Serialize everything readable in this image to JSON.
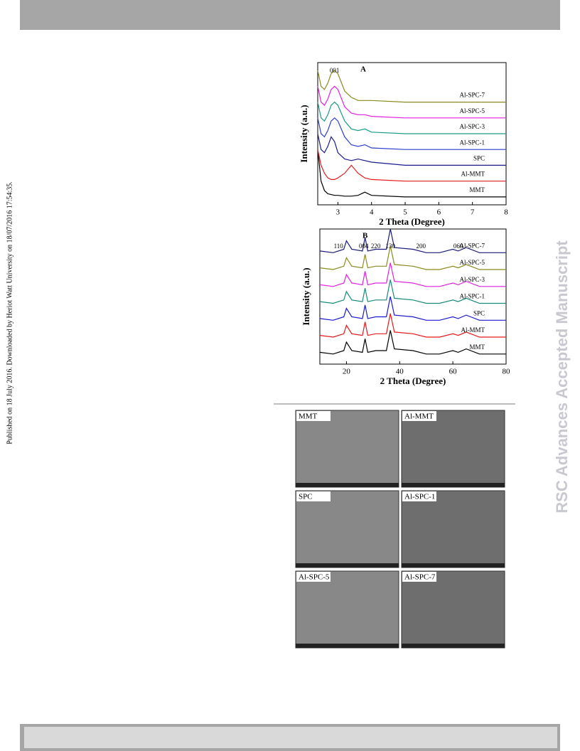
{
  "side_note": "Published on 18 July 2016. Downloaded by Heriot Watt University on 18/07/2016 17:54:35.",
  "watermark": "RSC Advances Accepted Manuscript",
  "chart_data": [
    {
      "type": "line",
      "panel": "A",
      "xlabel": "2 Theta (Degree)",
      "ylabel": "Intensity (a.u.)",
      "annotations": [
        {
          "text": "001",
          "x": 2.9
        }
      ],
      "x": [
        2.4,
        2.5,
        2.6,
        2.7,
        2.8,
        2.9,
        3.0,
        3.2,
        3.4,
        3.6,
        3.8,
        4,
        5,
        6,
        7,
        8
      ],
      "xlim": [
        2.4,
        8
      ],
      "xticks": [
        3,
        4,
        5,
        6,
        7,
        8
      ],
      "ylim": [
        -0.5,
        8.5
      ],
      "series": [
        {
          "name": "MMT",
          "color": "#000000",
          "values": [
            3,
            1,
            0.4,
            0.2,
            0.15,
            0.1,
            0.1,
            0.05,
            0.05,
            0.1,
            0.3,
            0.1,
            0,
            0,
            0,
            0
          ]
        },
        {
          "name": "Al-MMT",
          "color": "#e41a1c",
          "values": [
            3,
            2,
            1.5,
            1.2,
            1.1,
            1.1,
            1.2,
            1.5,
            2.0,
            1.5,
            1.2,
            1.1,
            1.0,
            1.0,
            1.0,
            1.0
          ]
        },
        {
          "name": "SPC",
          "color": "#1a1a8c",
          "values": [
            4,
            3,
            2.8,
            3.2,
            3.8,
            3.5,
            2.8,
            2.4,
            2.3,
            2.4,
            2.3,
            2.2,
            2,
            2,
            2,
            2
          ]
        },
        {
          "name": "Al-SPC-1",
          "color": "#2b3fc9",
          "values": [
            5,
            4,
            3.8,
            4.2,
            4.8,
            5.0,
            4.8,
            3.8,
            3.3,
            3.2,
            3.3,
            3.1,
            3,
            3,
            3,
            3
          ]
        },
        {
          "name": "Al-SPC-3",
          "color": "#1a9a8a",
          "values": [
            6,
            5,
            4.8,
            5.2,
            5.8,
            6.0,
            5.8,
            4.8,
            4.3,
            4.2,
            4.3,
            4.1,
            4,
            4,
            4,
            4
          ]
        },
        {
          "name": "Al-SPC-5",
          "color": "#e020e0",
          "values": [
            7,
            6,
            5.8,
            6.2,
            6.8,
            7.0,
            6.8,
            5.7,
            5.3,
            5.2,
            5.2,
            5.1,
            5,
            5,
            5,
            5
          ]
        },
        {
          "name": "Al-SPC-7",
          "color": "#8a8a20",
          "values": [
            8,
            7,
            6.8,
            7.2,
            7.8,
            8.0,
            7.8,
            6.7,
            6.3,
            6.1,
            6.1,
            6.1,
            6,
            6,
            6,
            6
          ]
        }
      ]
    },
    {
      "type": "line",
      "panel": "B",
      "xlabel": "2 Theta (Degree)",
      "ylabel": "Intensity (a.u.)",
      "annotations": [
        {
          "text": "110",
          "x": 17
        },
        {
          "text": "004",
          "x": 26.5
        },
        {
          "text": "220",
          "x": 31
        },
        {
          "text": "130",
          "x": 36.5
        },
        {
          "text": "200",
          "x": 48
        },
        {
          "text": "060",
          "x": 62
        }
      ],
      "x": [
        10,
        15,
        19,
        20,
        22,
        26,
        27,
        28,
        31,
        35,
        36.5,
        38,
        45,
        50,
        55,
        60,
        62,
        65,
        70,
        75,
        80
      ],
      "xlim": [
        10,
        80
      ],
      "xticks": [
        20,
        40,
        60,
        80
      ],
      "ylim": [
        -0.5,
        7.5
      ],
      "series": [
        {
          "name": "MMT",
          "color": "#000000",
          "values": [
            0.2,
            0.1,
            0.3,
            0.8,
            0.3,
            0.2,
            1.0,
            0.2,
            0.3,
            0.3,
            1.5,
            0.4,
            0.3,
            0.1,
            0.1,
            0.3,
            0.2,
            0.4,
            0.1,
            0.1,
            0.1
          ]
        },
        {
          "name": "Al-MMT",
          "color": "#e41a1c",
          "values": [
            1.2,
            1.1,
            1.3,
            1.8,
            1.3,
            1.2,
            2.0,
            1.2,
            1.3,
            1.3,
            2.5,
            1.4,
            1.3,
            1.1,
            1.1,
            1.3,
            1.2,
            1.4,
            1.1,
            1.1,
            1.1
          ]
        },
        {
          "name": "SPC",
          "color": "#1a1acc",
          "values": [
            2.2,
            2.1,
            2.3,
            2.8,
            2.3,
            2.2,
            3.0,
            2.2,
            2.3,
            2.3,
            3.5,
            2.4,
            2.3,
            2.1,
            2.1,
            2.3,
            2.2,
            2.4,
            2.1,
            2.1,
            2.1
          ]
        },
        {
          "name": "Al-SPC-1",
          "color": "#1a8a7a",
          "values": [
            3.2,
            3.1,
            3.3,
            3.8,
            3.3,
            3.2,
            4.0,
            3.2,
            3.3,
            3.3,
            4.5,
            3.4,
            3.3,
            3.1,
            3.1,
            3.3,
            3.2,
            3.4,
            3.1,
            3.1,
            3.1
          ]
        },
        {
          "name": "Al-SPC-3",
          "color": "#e020e0",
          "values": [
            4.2,
            4.1,
            4.3,
            4.8,
            4.3,
            4.2,
            5.0,
            4.2,
            4.3,
            4.3,
            5.5,
            4.4,
            4.3,
            4.1,
            4.1,
            4.3,
            4.2,
            4.4,
            4.1,
            4.1,
            4.1
          ]
        },
        {
          "name": "Al-SPC-5",
          "color": "#8a8a20",
          "values": [
            5.2,
            5.1,
            5.3,
            5.8,
            5.3,
            5.2,
            6.0,
            5.2,
            5.3,
            5.3,
            6.5,
            5.4,
            5.3,
            5.1,
            5.1,
            5.3,
            5.2,
            5.4,
            5.1,
            5.1,
            5.1
          ]
        },
        {
          "name": "Al-SPC-7",
          "color": "#1a1a7a",
          "values": [
            6.2,
            6.1,
            6.3,
            6.8,
            6.3,
            6.2,
            7.0,
            6.2,
            6.3,
            6.3,
            7.5,
            6.4,
            6.3,
            6.1,
            6.1,
            6.3,
            6.2,
            6.4,
            6.1,
            6.1,
            6.1
          ]
        }
      ]
    }
  ],
  "images": [
    {
      "label": "MMT"
    },
    {
      "label": "Al-MMT"
    },
    {
      "label": "SPC"
    },
    {
      "label": "Al-SPC-1"
    },
    {
      "label": "Al-SPC-5"
    },
    {
      "label": "Al-SPC-7"
    }
  ]
}
